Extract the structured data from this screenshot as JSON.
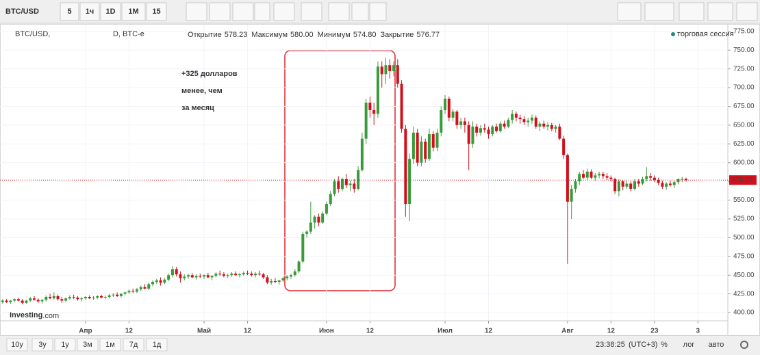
{
  "toolbar": {
    "symbol": "BTC/USD",
    "intervals": [
      "5",
      "1ч",
      "1D",
      "1M",
      "15"
    ]
  },
  "chart_data": {
    "type": "candlestick",
    "title": "BTC/USD,",
    "interval": "D, BTC-e",
    "ohlc_legend": [
      {
        "label": "Открытие",
        "value": 578.23
      },
      {
        "label": "Максимум",
        "value": 580,
        "value_label": "580.00"
      },
      {
        "label": "Минимум",
        "value": 574.8,
        "value_label": "574.80"
      },
      {
        "label": "Закрытие",
        "value": 576.77
      }
    ],
    "session_label": "торговая сессия",
    "watermark": [
      "Investing",
      ".com"
    ],
    "annotation": [
      "+325 долларов",
      "менее, чем",
      "за месяц"
    ],
    "last_price": 576.77,
    "up_color": "#3a9a3a",
    "down_color": "#d0101c",
    "grid": true,
    "ylim": [
      390,
      784
    ],
    "yticks": [
      {
        "value": 400,
        "label": "400.00"
      },
      {
        "value": 425,
        "label": "425.00"
      },
      {
        "value": 450,
        "label": "450.00"
      },
      {
        "value": 475,
        "label": "475.00"
      },
      {
        "value": 500,
        "label": "500.00"
      },
      {
        "value": 525,
        "label": "525.00"
      },
      {
        "value": 550,
        "label": "550.00"
      },
      {
        "value": 575,
        "label": "575.00"
      },
      {
        "value": 600,
        "label": "600.00"
      },
      {
        "value": 625,
        "label": "625.00"
      },
      {
        "value": 650,
        "label": "650.00"
      },
      {
        "value": 675,
        "label": "675.00"
      },
      {
        "value": 700,
        "label": "700.00"
      },
      {
        "value": 725,
        "label": "725.00"
      },
      {
        "value": 750,
        "label": "750.00"
      },
      {
        "value": 775,
        "label": "775.00"
      }
    ],
    "categories": [
      null,
      null,
      null,
      null,
      null,
      null,
      null,
      null,
      null,
      null,
      null,
      null,
      null,
      null,
      null,
      null,
      null,
      null,
      null,
      null,
      null,
      "Апр",
      null,
      null,
      null,
      null,
      null,
      null,
      null,
      null,
      null,
      null,
      "12",
      null,
      null,
      null,
      null,
      null,
      null,
      null,
      null,
      null,
      null,
      null,
      null,
      null,
      null,
      null,
      null,
      null,
      null,
      "Май",
      null,
      null,
      null,
      null,
      null,
      null,
      null,
      null,
      null,
      null,
      "12",
      null,
      null,
      null,
      null,
      null,
      null,
      null,
      null,
      null,
      null,
      null,
      null,
      null,
      null,
      null,
      null,
      null,
      null,
      null,
      "Июн",
      null,
      null,
      null,
      null,
      null,
      null,
      null,
      null,
      null,
      null,
      "12",
      null,
      null,
      null,
      null,
      null,
      null,
      null,
      null,
      null,
      null,
      null,
      null,
      null,
      null,
      null,
      null,
      null,
      null,
      "Июл",
      null,
      null,
      null,
      null,
      null,
      null,
      null,
      null,
      null,
      null,
      "12",
      null,
      null,
      null,
      null,
      null,
      null,
      null,
      null,
      null,
      null,
      null,
      null,
      null,
      null,
      null,
      null,
      null,
      null,
      null,
      "Авг",
      null,
      null,
      null,
      null,
      null,
      null,
      null,
      null,
      null,
      null,
      "12",
      null,
      null,
      null,
      null,
      null,
      null,
      null,
      null,
      null,
      null,
      "23",
      null,
      null,
      null,
      null,
      null,
      null,
      null,
      null,
      null,
      null,
      "3"
    ],
    "values": [
      [
        414,
        418,
        412,
        416
      ],
      [
        416,
        418,
        413,
        414
      ],
      [
        414,
        417,
        412,
        416
      ],
      [
        416,
        419,
        414,
        418
      ],
      [
        418,
        420,
        415,
        416
      ],
      [
        416,
        418,
        411,
        413
      ],
      [
        413,
        417,
        412,
        416
      ],
      [
        416,
        421,
        414,
        419
      ],
      [
        419,
        422,
        416,
        417
      ],
      [
        417,
        419,
        413,
        415
      ],
      [
        415,
        418,
        412,
        417
      ],
      [
        417,
        423,
        415,
        421
      ],
      [
        421,
        425,
        418,
        419
      ],
      [
        419,
        427,
        417,
        422
      ],
      [
        422,
        424,
        416,
        418
      ],
      [
        418,
        421,
        413,
        416
      ],
      [
        416,
        420,
        414,
        419
      ],
      [
        419,
        423,
        417,
        421
      ],
      [
        421,
        424,
        418,
        420
      ],
      [
        420,
        422,
        416,
        418
      ],
      [
        418,
        421,
        415,
        419
      ],
      [
        419,
        422,
        417,
        421
      ],
      [
        421,
        423,
        418,
        419
      ],
      [
        419,
        422,
        417,
        420
      ],
      [
        420,
        423,
        418,
        422
      ],
      [
        422,
        424,
        419,
        420
      ],
      [
        420,
        423,
        418,
        421
      ],
      [
        421,
        425,
        419,
        423
      ],
      [
        423,
        426,
        421,
        424
      ],
      [
        424,
        427,
        421,
        422
      ],
      [
        422,
        426,
        420,
        425
      ],
      [
        425,
        428,
        423,
        427
      ],
      [
        427,
        431,
        425,
        429
      ],
      [
        429,
        432,
        426,
        428
      ],
      [
        428,
        433,
        426,
        431
      ],
      [
        431,
        436,
        429,
        434
      ],
      [
        434,
        438,
        431,
        432
      ],
      [
        432,
        440,
        430,
        438
      ],
      [
        438,
        443,
        435,
        441
      ],
      [
        441,
        445,
        438,
        443
      ],
      [
        443,
        447,
        436,
        440
      ],
      [
        440,
        446,
        438,
        444
      ],
      [
        444,
        452,
        442,
        450
      ],
      [
        450,
        462,
        447,
        458
      ],
      [
        458,
        461,
        448,
        451
      ],
      [
        451,
        455,
        440,
        446
      ],
      [
        446,
        451,
        443,
        448
      ],
      [
        448,
        452,
        445,
        450
      ],
      [
        450,
        453,
        446,
        447
      ],
      [
        447,
        451,
        444,
        449
      ],
      [
        449,
        452,
        446,
        448
      ],
      [
        448,
        451,
        445,
        450
      ],
      [
        450,
        453,
        446,
        447
      ],
      [
        447,
        450,
        443,
        449
      ],
      [
        449,
        454,
        447,
        452
      ],
      [
        452,
        456,
        449,
        451
      ],
      [
        451,
        454,
        447,
        449
      ],
      [
        449,
        452,
        446,
        450
      ],
      [
        450,
        454,
        448,
        452
      ],
      [
        452,
        455,
        449,
        450
      ],
      [
        450,
        453,
        447,
        451
      ],
      [
        451,
        455,
        449,
        453
      ],
      [
        453,
        456,
        450,
        452
      ],
      [
        452,
        455,
        448,
        450
      ],
      [
        450,
        454,
        447,
        452
      ],
      [
        452,
        456,
        449,
        451
      ],
      [
        451,
        453,
        445,
        447
      ],
      [
        447,
        450,
        438,
        440
      ],
      [
        440,
        445,
        437,
        442
      ],
      [
        442,
        446,
        439,
        441
      ],
      [
        441,
        444,
        437,
        443
      ],
      [
        443,
        448,
        441,
        446
      ],
      [
        446,
        450,
        443,
        448
      ],
      [
        448,
        452,
        445,
        450
      ],
      [
        450,
        458,
        448,
        455
      ],
      [
        455,
        470,
        453,
        468
      ],
      [
        468,
        508,
        466,
        505
      ],
      [
        505,
        510,
        500,
        508
      ],
      [
        508,
        548,
        505,
        520
      ],
      [
        520,
        530,
        512,
        528
      ],
      [
        528,
        532,
        515,
        520
      ],
      [
        520,
        535,
        518,
        532
      ],
      [
        532,
        548,
        530,
        545
      ],
      [
        545,
        562,
        542,
        558
      ],
      [
        558,
        578,
        555,
        575
      ],
      [
        575,
        582,
        560,
        565
      ],
      [
        565,
        580,
        562,
        578
      ],
      [
        578,
        585,
        566,
        570
      ],
      [
        570,
        576,
        562,
        572
      ],
      [
        572,
        578,
        560,
        565
      ],
      [
        565,
        595,
        563,
        590
      ],
      [
        590,
        640,
        588,
        632
      ],
      [
        632,
        685,
        625,
        680
      ],
      [
        680,
        688,
        660,
        670
      ],
      [
        670,
        680,
        650,
        665
      ],
      [
        665,
        735,
        660,
        728
      ],
      [
        728,
        735,
        700,
        718
      ],
      [
        718,
        740,
        705,
        730
      ],
      [
        730,
        738,
        712,
        722
      ],
      [
        722,
        735,
        715,
        730
      ],
      [
        730,
        738,
        700,
        705
      ],
      [
        705,
        710,
        640,
        645
      ],
      [
        645,
        650,
        528,
        545
      ],
      [
        545,
        612,
        522,
        605
      ],
      [
        605,
        648,
        598,
        640
      ],
      [
        640,
        645,
        595,
        600
      ],
      [
        600,
        635,
        595,
        628
      ],
      [
        628,
        632,
        600,
        605
      ],
      [
        605,
        645,
        602,
        638
      ],
      [
        638,
        642,
        615,
        620
      ],
      [
        620,
        645,
        615,
        640
      ],
      [
        640,
        675,
        635,
        670
      ],
      [
        670,
        690,
        665,
        685
      ],
      [
        685,
        688,
        655,
        660
      ],
      [
        660,
        672,
        655,
        668
      ],
      [
        668,
        670,
        645,
        650
      ],
      [
        650,
        660,
        645,
        655
      ],
      [
        655,
        660,
        640,
        650
      ],
      [
        650,
        655,
        590,
        625
      ],
      [
        625,
        655,
        620,
        648
      ],
      [
        648,
        652,
        635,
        640
      ],
      [
        640,
        650,
        636,
        646
      ],
      [
        646,
        652,
        640,
        644
      ],
      [
        644,
        648,
        632,
        638
      ],
      [
        638,
        650,
        635,
        648
      ],
      [
        648,
        652,
        640,
        642
      ],
      [
        642,
        655,
        640,
        652
      ],
      [
        652,
        656,
        645,
        648
      ],
      [
        648,
        660,
        646,
        657
      ],
      [
        657,
        670,
        652,
        665
      ],
      [
        665,
        668,
        655,
        660
      ],
      [
        660,
        664,
        652,
        658
      ],
      [
        658,
        662,
        650,
        654
      ],
      [
        654,
        660,
        648,
        656
      ],
      [
        656,
        664,
        652,
        660
      ],
      [
        660,
        663,
        645,
        648
      ],
      [
        648,
        655,
        642,
        652
      ],
      [
        652,
        656,
        645,
        648
      ],
      [
        648,
        654,
        643,
        650
      ],
      [
        650,
        653,
        642,
        645
      ],
      [
        645,
        650,
        640,
        648
      ],
      [
        648,
        652,
        630,
        632
      ],
      [
        632,
        636,
        605,
        610
      ],
      [
        610,
        612,
        465,
        548
      ],
      [
        548,
        570,
        525,
        565
      ],
      [
        565,
        578,
        560,
        575
      ],
      [
        575,
        588,
        570,
        585
      ],
      [
        585,
        590,
        578,
        580
      ],
      [
        580,
        592,
        577,
        588
      ],
      [
        588,
        591,
        578,
        580
      ],
      [
        580,
        586,
        576,
        583
      ],
      [
        583,
        588,
        579,
        585
      ],
      [
        585,
        588,
        578,
        582
      ],
      [
        582,
        586,
        577,
        580
      ],
      [
        580,
        583,
        575,
        578
      ],
      [
        578,
        580,
        558,
        562
      ],
      [
        562,
        578,
        555,
        575
      ],
      [
        575,
        577,
        563,
        568
      ],
      [
        568,
        576,
        565,
        572
      ],
      [
        572,
        575,
        562,
        565
      ],
      [
        565,
        578,
        563,
        575
      ],
      [
        575,
        578,
        568,
        572
      ],
      [
        572,
        581,
        570,
        578
      ],
      [
        578,
        594,
        575,
        582
      ],
      [
        582,
        586,
        576,
        580
      ],
      [
        580,
        583,
        574,
        577
      ],
      [
        577,
        580,
        570,
        573
      ],
      [
        573,
        576,
        565,
        568
      ],
      [
        568,
        574,
        564,
        572
      ],
      [
        572,
        576,
        568,
        570
      ],
      [
        570,
        576,
        566,
        574
      ],
      [
        574,
        579,
        571,
        578
      ],
      [
        578,
        581,
        574,
        578.23
      ],
      [
        578.23,
        580,
        574.8,
        576.77
      ],
      null,
      null,
      null
    ]
  },
  "bottom_bar": {
    "ranges": [
      "10у",
      "3у",
      "1у",
      "3м",
      "1м",
      "7д",
      "1д"
    ],
    "time": "23:38:25",
    "timezone": "(UTC+3)",
    "options": [
      "%",
      "лог",
      "авто"
    ]
  }
}
